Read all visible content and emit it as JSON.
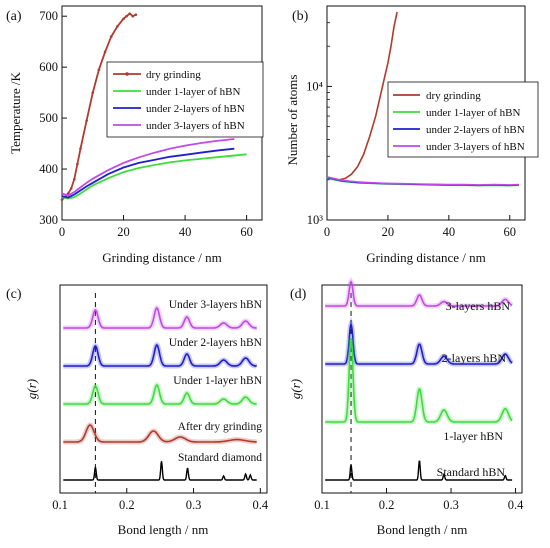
{
  "colors": {
    "dry": "#b03a2e",
    "one": "#3ddc3d",
    "two": "#1f1fcf",
    "three": "#c14ae6",
    "standard": "#000000"
  },
  "chart_data": [
    {
      "panel": "(a)",
      "type": "line",
      "xlabel": "Grinding distance / nm",
      "ylabel": "Temperature /K",
      "xlim": [
        0,
        65
      ],
      "ylim": [
        300,
        720
      ],
      "xticks": [
        0,
        20,
        40,
        60
      ],
      "yticks": [
        300,
        400,
        500,
        600,
        700
      ],
      "legend_position": "middle-right",
      "series": [
        {
          "name": "dry grinding",
          "color_key": "dry",
          "x": [
            0,
            1,
            2,
            3,
            4,
            5,
            6,
            8,
            10,
            12,
            14,
            16,
            18,
            20,
            21,
            22,
            23,
            24
          ],
          "y": [
            340,
            345,
            352,
            362,
            380,
            410,
            440,
            495,
            550,
            595,
            630,
            660,
            680,
            695,
            700,
            705,
            700,
            703
          ]
        },
        {
          "name": "under 1-layer of hBN",
          "color_key": "one",
          "x": [
            0,
            2,
            4,
            6,
            8,
            10,
            15,
            20,
            25,
            30,
            35,
            40,
            45,
            50,
            55,
            60
          ],
          "y": [
            345,
            342,
            345,
            352,
            360,
            368,
            382,
            394,
            402,
            408,
            413,
            417,
            420,
            423,
            426,
            429
          ]
        },
        {
          "name": "under 2-layers of hBN",
          "color_key": "two",
          "x": [
            0,
            2,
            4,
            6,
            8,
            10,
            15,
            20,
            25,
            30,
            35,
            40,
            45,
            50,
            56
          ],
          "y": [
            347,
            344,
            350,
            358,
            366,
            373,
            390,
            403,
            412,
            418,
            424,
            428,
            432,
            436,
            440
          ]
        },
        {
          "name": "under 3-layers of hBN",
          "color_key": "three",
          "x": [
            0,
            2,
            4,
            6,
            8,
            10,
            15,
            20,
            25,
            30,
            35,
            40,
            45,
            50,
            56
          ],
          "y": [
            352,
            348,
            355,
            364,
            373,
            381,
            398,
            412,
            423,
            432,
            440,
            446,
            451,
            455,
            459
          ]
        }
      ]
    },
    {
      "panel": "(b)",
      "type": "line",
      "xlabel": "Grinding distance / nm",
      "ylabel": "Number of atoms",
      "xlim": [
        0,
        65
      ],
      "ylim": [
        1000,
        40000
      ],
      "yscale": "log",
      "xticks": [
        0,
        20,
        40,
        60
      ],
      "yticks": [
        1000,
        10000
      ],
      "ytick_labels": [
        "10³",
        "10⁴"
      ],
      "legend_position": "middle-right",
      "series": [
        {
          "name": "dry grinding",
          "color_key": "dry",
          "x": [
            0,
            2,
            4,
            6,
            8,
            10,
            12,
            14,
            16,
            18,
            20,
            21,
            22,
            23
          ],
          "y": [
            2100,
            2050,
            2000,
            2050,
            2200,
            2500,
            3100,
            4200,
            6000,
            9500,
            15000,
            20000,
            28000,
            36000
          ]
        },
        {
          "name": "under 1-layer of hBN",
          "color_key": "one",
          "x": [
            0,
            5,
            10,
            15,
            20,
            25,
            30,
            35,
            40,
            45,
            50,
            55,
            60,
            63
          ],
          "y": [
            2050,
            1950,
            1900,
            1880,
            1860,
            1850,
            1840,
            1830,
            1820,
            1820,
            1810,
            1820,
            1810,
            1820
          ]
        },
        {
          "name": "under 2-layers of hBN",
          "color_key": "two",
          "x": [
            0,
            5,
            10,
            15,
            20,
            25,
            30,
            35,
            40,
            45,
            50,
            55,
            60,
            63
          ],
          "y": [
            2080,
            1960,
            1910,
            1890,
            1870,
            1860,
            1850,
            1840,
            1830,
            1830,
            1820,
            1830,
            1820,
            1830
          ]
        },
        {
          "name": "under 3-layers of hBN",
          "color_key": "three",
          "x": [
            0,
            5,
            10,
            15,
            20,
            25,
            30,
            35,
            40,
            45,
            50,
            55,
            60,
            63
          ],
          "y": [
            2100,
            1980,
            1930,
            1900,
            1880,
            1870,
            1860,
            1850,
            1840,
            1840,
            1830,
            1840,
            1830,
            1840
          ]
        }
      ]
    },
    {
      "panel": "(c)",
      "type": "line",
      "xlabel": "Bond length / nm",
      "ylabel": "g(r)",
      "xlim": [
        0.1,
        0.41
      ],
      "xticks": [
        0.1,
        0.2,
        0.3,
        0.4
      ],
      "dashed_line_x": 0.153,
      "series": [
        {
          "name": "Under 3-layers hBN",
          "label": "Under 3-layers hBN",
          "color_key": "three",
          "offset": 4,
          "peaks": [
            [
              0.153,
              0.9,
              0.004
            ],
            [
              0.245,
              1.0,
              0.004
            ],
            [
              0.29,
              0.55,
              0.004
            ],
            [
              0.345,
              0.25,
              0.005
            ],
            [
              0.378,
              0.35,
              0.005
            ]
          ]
        },
        {
          "name": "Under 2-layers hBN",
          "label": "Under 2-layers hBN",
          "color_key": "two",
          "offset": 3,
          "peaks": [
            [
              0.153,
              1.0,
              0.004
            ],
            [
              0.245,
              1.05,
              0.004
            ],
            [
              0.29,
              0.6,
              0.004
            ],
            [
              0.345,
              0.3,
              0.005
            ],
            [
              0.378,
              0.4,
              0.005
            ]
          ]
        },
        {
          "name": "Under 1-layer hBN",
          "label": "Under 1-layer hBN",
          "color_key": "one",
          "offset": 2,
          "peaks": [
            [
              0.153,
              0.9,
              0.004
            ],
            [
              0.245,
              0.95,
              0.004
            ],
            [
              0.29,
              0.55,
              0.004
            ],
            [
              0.345,
              0.25,
              0.005
            ],
            [
              0.378,
              0.35,
              0.005
            ]
          ]
        },
        {
          "name": "After dry grinding",
          "label": "After dry grinding",
          "color_key": "dry",
          "offset": 1,
          "peaks": [
            [
              0.145,
              0.85,
              0.006
            ],
            [
              0.24,
              0.55,
              0.007
            ],
            [
              0.28,
              0.25,
              0.008
            ],
            [
              0.365,
              0.12,
              0.012
            ]
          ]
        },
        {
          "name": "Standard diamond",
          "label": "Standard diamond",
          "color_key": "standard",
          "offset": 0,
          "peaks": [
            [
              0.153,
              0.65,
              0.0012
            ],
            [
              0.252,
              0.95,
              0.0012
            ],
            [
              0.291,
              0.6,
              0.0012
            ],
            [
              0.345,
              0.2,
              0.0012
            ],
            [
              0.378,
              0.3,
              0.0012
            ],
            [
              0.385,
              0.25,
              0.0012
            ]
          ]
        }
      ]
    },
    {
      "panel": "(d)",
      "type": "line",
      "xlabel": "Bond length / nm",
      "ylabel": "g(r)",
      "xlim": [
        0.1,
        0.41
      ],
      "xticks": [
        0.1,
        0.2,
        0.3,
        0.4
      ],
      "dashed_line_x": 0.145,
      "series": [
        {
          "name": "3-layers hBN",
          "label": "3-layers hBN",
          "color_key": "three",
          "offset": 3,
          "peaks": [
            [
              0.145,
              1.1,
              0.003
            ],
            [
              0.251,
              0.5,
              0.004
            ],
            [
              0.289,
              0.2,
              0.005
            ],
            [
              0.384,
              0.3,
              0.005
            ]
          ]
        },
        {
          "name": "2-layers hBN",
          "label": "2-layers hBN",
          "color_key": "two",
          "offset": 2,
          "peaks": [
            [
              0.145,
              1.8,
              0.003
            ],
            [
              0.251,
              0.9,
              0.004
            ],
            [
              0.289,
              0.35,
              0.005
            ],
            [
              0.384,
              0.45,
              0.005
            ]
          ]
        },
        {
          "name": "1-layer hBN",
          "label": "1-layer hBN",
          "color_key": "one",
          "offset": 1,
          "peaks": [
            [
              0.145,
              3.8,
              0.003
            ],
            [
              0.251,
              1.5,
              0.004
            ],
            [
              0.289,
              0.55,
              0.005
            ],
            [
              0.384,
              0.6,
              0.005
            ]
          ]
        },
        {
          "name": "Standard hBN",
          "label": "Standard hBN",
          "color_key": "standard",
          "offset": 0,
          "peaks": [
            [
              0.145,
              0.7,
              0.0012
            ],
            [
              0.251,
              0.9,
              0.0012
            ],
            [
              0.289,
              0.25,
              0.0012
            ],
            [
              0.384,
              0.2,
              0.0012
            ]
          ]
        }
      ]
    }
  ]
}
